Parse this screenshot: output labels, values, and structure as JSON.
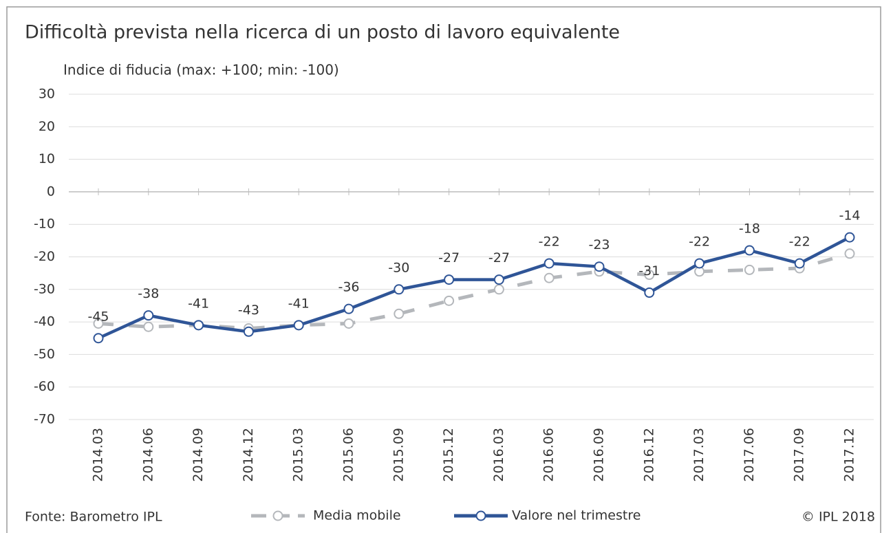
{
  "chart_data": {
    "type": "line",
    "title": "Difficoltà prevista nella ricerca di un posto di lavoro equivalente",
    "y_label": "Indice di fiducia (max: +100; min: -100)",
    "source": "Fonte: Barometro IPL",
    "copyright": "© IPL 2018",
    "categories": [
      "2014.03",
      "2014.06",
      "2014.09",
      "2014.12",
      "2015.03",
      "2015.06",
      "2015.09",
      "2015.12",
      "2016.03",
      "2016.06",
      "2016.09",
      "2016.12",
      "2017.03",
      "2017.06",
      "2017.09",
      "2017.12"
    ],
    "series": [
      {
        "name": "Media mobile",
        "color": "#b4b7bb",
        "dashed": true,
        "values": [
          -40.5,
          -41.5,
          -41,
          -42,
          -41,
          -40.5,
          -37.5,
          -33.5,
          -30,
          -26.5,
          -24.5,
          -25.5,
          -24.5,
          -24,
          -23.5,
          -19
        ]
      },
      {
        "name": "Valore nel trimestre",
        "color": "#2f5597",
        "dashed": false,
        "labeled": true,
        "values": [
          -45,
          -38,
          -41,
          -43,
          -41,
          -36,
          -30,
          -27,
          -27,
          -22,
          -23,
          -31,
          -22,
          -18,
          -22,
          -14
        ]
      }
    ],
    "ylim": [
      -70,
      30
    ],
    "yticks": [
      -70,
      -60,
      -50,
      -40,
      -30,
      -20,
      -10,
      0,
      10,
      20,
      30
    ],
    "grid": true
  }
}
